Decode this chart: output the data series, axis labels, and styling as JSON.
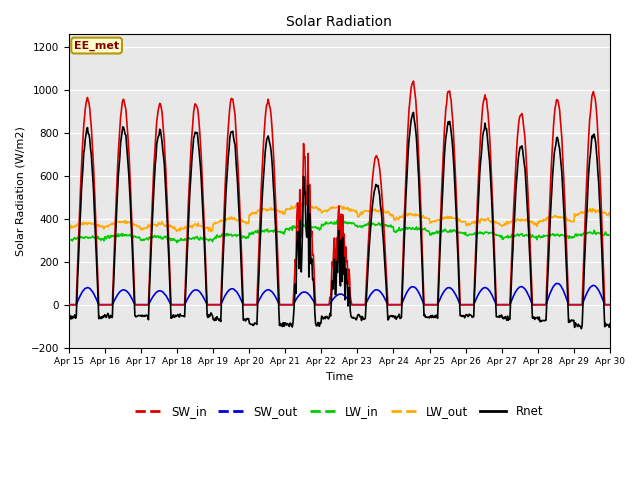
{
  "title": "Solar Radiation",
  "ylabel": "Solar Radiation (W/m2)",
  "xlabel": "Time",
  "ylim": [
    -200,
    1260
  ],
  "yticks": [
    -200,
    0,
    200,
    400,
    600,
    800,
    1000,
    1200
  ],
  "figure_bg_color": "#ffffff",
  "plot_bg_color": "#e8e8e8",
  "grid_color": "#ffffff",
  "annotation_text": "EE_met",
  "annotation_box_color": "#ffffcc",
  "annotation_border_color": "#b8960c",
  "annotation_text_color": "#880000",
  "xtick_labels": [
    "Apr 15",
    "Apr 16",
    "Apr 17",
    "Apr 18",
    "Apr 19",
    "Apr 20",
    "Apr 21",
    "Apr 22",
    "Apr 23",
    "Apr 24",
    "Apr 25",
    "Apr 26",
    "Apr 27",
    "Apr 28",
    "Apr 29",
    "Apr 30"
  ],
  "legend_entries": [
    "SW_in",
    "SW_out",
    "LW_in",
    "LW_out",
    "Rnet"
  ],
  "line_colors": [
    "#dd0000",
    "#0000dd",
    "#00cc00",
    "#ffaa00",
    "#000000"
  ],
  "line_widths": [
    1.2,
    1.2,
    1.2,
    1.2,
    1.2
  ],
  "peak_amps_SW_in": [
    970,
    960,
    945,
    945,
    970,
    960,
    820,
    600,
    700,
    1050,
    1005,
    980,
    900,
    965,
    995
  ],
  "peak_amps_SW_out": [
    80,
    70,
    65,
    70,
    75,
    70,
    60,
    50,
    70,
    85,
    80,
    80,
    85,
    100,
    90
  ],
  "LW_in_base": [
    300,
    310,
    300,
    295,
    310,
    330,
    350,
    370,
    360,
    340,
    330,
    320,
    310,
    310,
    320
  ],
  "LW_out_base": [
    355,
    360,
    350,
    345,
    375,
    420,
    440,
    430,
    415,
    395,
    380,
    370,
    370,
    385,
    415
  ]
}
